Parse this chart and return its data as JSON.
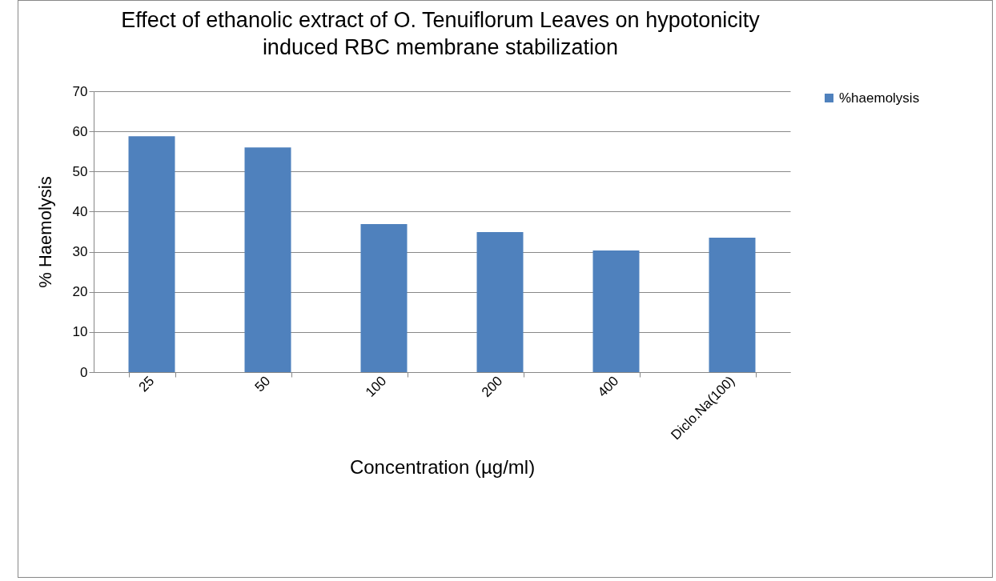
{
  "chart_data": {
    "type": "bar",
    "title": "Effect of ethanolic extract of O. Tenuiflorum Leaves on hypotonicity induced RBC membrane stabilization",
    "xlabel": "Concentration (µg/ml)",
    "ylabel": "% Haemolysis",
    "categories": [
      "25",
      "50",
      "100",
      "200",
      "400",
      "Diclo.Na(100)"
    ],
    "series": [
      {
        "name": "%haemolysis",
        "color": "#4f81bd",
        "values": [
          58.8,
          56.0,
          36.9,
          34.9,
          30.3,
          33.5
        ]
      }
    ],
    "ylim": [
      0,
      70
    ],
    "yticks": [
      0,
      10,
      20,
      30,
      40,
      50,
      60,
      70
    ],
    "grid": "y",
    "legend": "right"
  }
}
